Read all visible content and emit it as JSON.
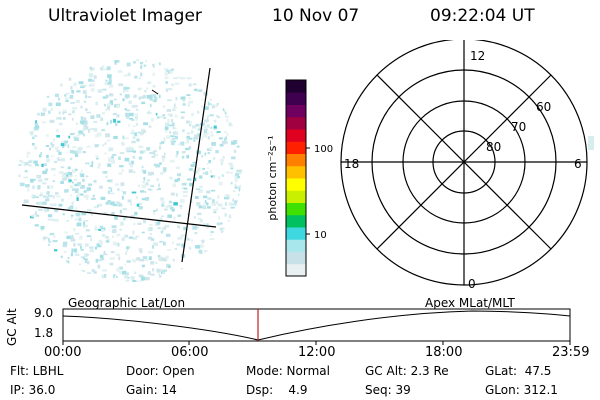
{
  "header": {
    "instrument": "Ultraviolet Imager",
    "date": "10 Nov 07",
    "time": "09:22:04 UT"
  },
  "colorbar": {
    "unit_label": "photon cm⁻²s⁻¹",
    "ticks": [
      "100",
      "10"
    ],
    "colors": [
      "#e8f0f0",
      "#c8e0e8",
      "#a8e8ec",
      "#40d8e0",
      "#00c060",
      "#40e000",
      "#c8f000",
      "#ffff00",
      "#ffc000",
      "#ff8000",
      "#ff2000",
      "#e00020",
      "#a00040",
      "#700060",
      "#400050",
      "#200030"
    ]
  },
  "polar_plot": {
    "mlt_labels": {
      "top": "12",
      "bottom": "0",
      "left": "18",
      "right": "6"
    },
    "lat_labels": [
      "80",
      "70",
      "60"
    ]
  },
  "orbit_plot": {
    "ylabel": "GC Alt",
    "yticks": [
      "9.0",
      "1.8"
    ],
    "left_title": "Geographic Lat/Lon",
    "right_title": "Apex MLat/MLT",
    "xticks": [
      "00:00",
      "06:00",
      "12:00",
      "18:00",
      "23:59"
    ],
    "marker_color": "#c02020"
  },
  "status": {
    "flt": "Flt: LBHL",
    "ip": "IP: 36.0",
    "door": "Door: Open",
    "gain": "Gain: 14",
    "mode": "Mode: Normal",
    "dsp": "Dsp:    4.9",
    "gc_alt": "GC Alt: 2.3 Re",
    "seq": "Seq: 39",
    "glat": "GLat:  47.5",
    "glon": "GLon: 312.1"
  }
}
